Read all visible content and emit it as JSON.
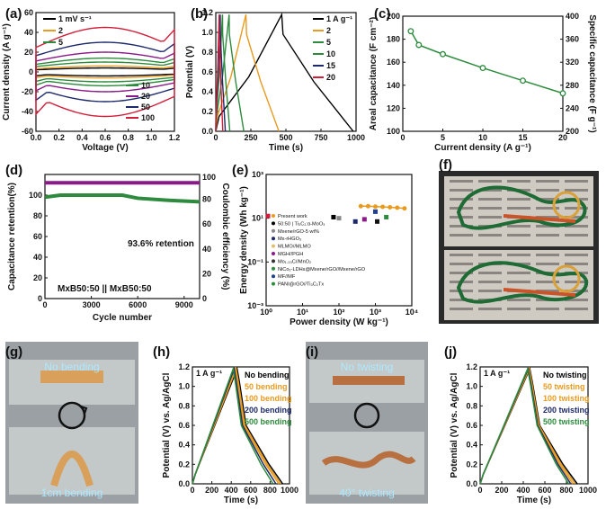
{
  "panel_labels": [
    "(a)",
    "(b)",
    "(c)",
    "(d)",
    "(e)",
    "(f)",
    "(g)",
    "(h)",
    "(i)",
    "(j)"
  ],
  "colors": {
    "black": "#000000",
    "orange": "#e89b1f",
    "green": "#2e8b3e",
    "navy": "#1c2a6b",
    "darkgreen": "#1f6b35",
    "crimson": "#d11f3a",
    "purple": "#8a1a8a",
    "lightgreen": "#4caf50"
  },
  "photos": {
    "g_top": "No bending",
    "g_bottom": "1cm bending",
    "i_top": "No twisting",
    "i_bottom": "40° twisting"
  },
  "chart_data": [
    {
      "id": "a",
      "type": "line",
      "title": "",
      "xlabel": "Voltage (V)",
      "ylabel": "Current density (A g⁻¹)",
      "xlim": [
        0,
        1.2
      ],
      "ylim": [
        -60,
        60
      ],
      "xticks": [
        0.0,
        0.2,
        0.4,
        0.6,
        0.8,
        1.0,
        1.2
      ],
      "yticks": [
        -60,
        -40,
        -20,
        0,
        20,
        40,
        60
      ],
      "series": [
        {
          "name": "1 mV s⁻¹",
          "color": "#000000",
          "amp": 4
        },
        {
          "name": "2",
          "color": "#e89b1f",
          "amp": 6
        },
        {
          "name": "5",
          "color": "#2e8b3e",
          "amp": 10
        },
        {
          "name": "10",
          "color": "#2e8b3e",
          "amp": 14
        },
        {
          "name": "20",
          "color": "#8a1a8a",
          "amp": 20
        },
        {
          "name": "50",
          "color": "#1c2a6b",
          "amp": 30
        },
        {
          "name": "100",
          "color": "#d11f3a",
          "amp": 45
        }
      ]
    },
    {
      "id": "b",
      "type": "line",
      "xlabel": "Time (s)",
      "ylabel": "Potential (V)",
      "xlim": [
        0,
        1000
      ],
      "ylim": [
        0,
        1.2
      ],
      "xticks": [
        0,
        250,
        500,
        750,
        1000
      ],
      "yticks": [
        0.0,
        0.2,
        0.4,
        0.6,
        0.8,
        1.0,
        1.2
      ],
      "series": [
        {
          "name": "1 A g⁻¹",
          "color": "#000000",
          "peak": 470,
          "end": 980
        },
        {
          "name": "2",
          "color": "#e89b1f",
          "peak": 215,
          "end": 450
        },
        {
          "name": "5",
          "color": "#2e8b3e",
          "peak": 95,
          "end": 200
        },
        {
          "name": "10",
          "color": "#2e8b3e",
          "peak": 48,
          "end": 100
        },
        {
          "name": "15",
          "color": "#1c2a6b",
          "peak": 32,
          "end": 68
        },
        {
          "name": "20",
          "color": "#d11f3a",
          "peak": 24,
          "end": 50
        }
      ]
    },
    {
      "id": "c",
      "type": "line",
      "xlabel": "Current density (A g⁻¹)",
      "ylabel": "Areal capacitance (F cm⁻²)",
      "y2label": "Specific capacitance (F g⁻¹)",
      "xlim": [
        0,
        20
      ],
      "ylim": [
        100,
        200
      ],
      "y2lim": [
        200,
        400
      ],
      "xticks": [
        0,
        5,
        10,
        15,
        20
      ],
      "yticks": [
        100,
        120,
        140,
        160,
        180,
        200
      ],
      "y2ticks": [
        200,
        240,
        280,
        320,
        360,
        400
      ],
      "x": [
        1,
        2,
        5,
        10,
        15,
        20
      ],
      "values": [
        187,
        175,
        167,
        155,
        144,
        133
      ],
      "color": "#2e8b3e"
    },
    {
      "id": "d",
      "type": "scatter",
      "xlabel": "Cycle number",
      "ylabel": "Capacitance retention(%)",
      "y2label": "Coulombic efficiency (%)",
      "xlim": [
        0,
        10000
      ],
      "ylim": [
        0,
        120
      ],
      "y2lim": [
        0,
        100
      ],
      "xticks": [
        0,
        3000,
        6000,
        9000
      ],
      "yticks": [
        0,
        20,
        40,
        60,
        80,
        100
      ],
      "y2ticks": [
        0,
        20,
        40,
        60,
        80,
        100
      ],
      "annotation": "93.6% retention",
      "device": "MxB50:50 || MxB50:50",
      "retention": {
        "x": [
          0,
          500,
          1000,
          3000,
          5000,
          6000,
          8000,
          10000
        ],
        "values": [
          98,
          99,
          100,
          100,
          100,
          97,
          95,
          93.6
        ],
        "color": "#2e8b3e"
      },
      "efficiency": {
        "value": 100,
        "color": "#8a1a8a"
      }
    },
    {
      "id": "e",
      "type": "scatter",
      "xlabel": "Power density (W kg⁻¹)",
      "ylabel": "Energy density (Wh kg⁻¹)",
      "xscale": "log",
      "yscale": "log",
      "xlim": [
        0,
        4
      ],
      "ylim": [
        -3,
        3
      ],
      "xticks": [
        "10⁰",
        "10¹",
        "10²",
        "10³",
        "10⁴"
      ],
      "yticks": [
        "10⁻³",
        "10⁻¹",
        "10¹",
        "10³"
      ],
      "legend": [
        {
          "name": "Present work",
          "color": "#e89b1f"
        },
        {
          "name": "50:50 | Ti₃C₂:α-MoO₃",
          "color": "#000000"
        },
        {
          "name": "Mxene/rGO-5 wt%",
          "color": "#888888"
        },
        {
          "name": "Mx-rHGO₃",
          "color": "#1c2a6b"
        },
        {
          "name": "MLMO//MLMO",
          "color": "#e0c070"
        },
        {
          "name": "MGH//PGH",
          "color": "#8a1a8a"
        },
        {
          "name": "Mo₁.₃₃C//MnO₂",
          "color": "#333333"
        },
        {
          "name": "NiCo₂-LDHs@Mxene/rGO//Mxene/rGO",
          "color": "#2e8b3e"
        },
        {
          "name": "MF//MF",
          "color": "#1f3f8f"
        },
        {
          "name": "PANI@rGO//Ti₃C₂Tx",
          "color": "#2e8b3e"
        }
      ],
      "present_work": {
        "x": [
          2.6,
          2.8,
          3.0,
          3.2,
          3.4,
          3.6,
          3.8
        ],
        "y": [
          1.55,
          1.55,
          1.53,
          1.52,
          1.5,
          1.48,
          1.45
        ]
      },
      "others": [
        {
          "x": 0.05,
          "y": 1.1,
          "color": "#d11f3a"
        },
        {
          "x": 1.85,
          "y": 1.05,
          "color": "#000000"
        },
        {
          "x": 2.0,
          "y": 1.0,
          "color": "#888888"
        },
        {
          "x": 2.45,
          "y": 0.85,
          "color": "#1c2a6b"
        },
        {
          "x": 2.7,
          "y": 0.95,
          "color": "#8a1a8a"
        },
        {
          "x": 3.05,
          "y": 0.85,
          "color": "#111111"
        },
        {
          "x": 3.3,
          "y": 1.05,
          "color": "#2e8b3e"
        },
        {
          "x": 3.0,
          "y": 1.3,
          "color": "#1f3f8f"
        }
      ]
    },
    {
      "id": "h",
      "type": "line",
      "xlabel": "Time (s)",
      "ylabel": "Potential (V) vs. Ag/AgCl",
      "xlim": [
        0,
        1000
      ],
      "ylim": [
        0,
        1.2
      ],
      "xticks": [
        0,
        200,
        400,
        600,
        800,
        1000
      ],
      "yticks": [
        0.0,
        0.2,
        0.4,
        0.6,
        0.8,
        1.0,
        1.2
      ],
      "note": "1 A g⁻¹",
      "series": [
        {
          "name": "No bending",
          "color": "#000000",
          "peak": 460,
          "end": 930
        },
        {
          "name": "50 bending",
          "color": "#e89b1f",
          "peak": 450,
          "end": 910
        },
        {
          "name": "100 bending",
          "color": "#e89b1f",
          "peak": 440,
          "end": 890
        },
        {
          "name": "200 bending",
          "color": "#1c2a6b",
          "peak": 430,
          "end": 860
        },
        {
          "name": "500 bending",
          "color": "#2e8b3e",
          "peak": 420,
          "end": 830
        }
      ]
    },
    {
      "id": "j",
      "type": "line",
      "xlabel": "Time (s)",
      "ylabel": "Potential (V) vs. Ag/AgCl",
      "xlim": [
        0,
        1000
      ],
      "ylim": [
        0,
        1.2
      ],
      "xticks": [
        0,
        200,
        400,
        600,
        800,
        1000
      ],
      "yticks": [
        0.0,
        0.2,
        0.4,
        0.6,
        0.8,
        1.0,
        1.2
      ],
      "note": "1 A g⁻¹",
      "series": [
        {
          "name": "No twisting",
          "color": "#000000",
          "peak": 460,
          "end": 900
        },
        {
          "name": "50 twisting",
          "color": "#e89b1f",
          "peak": 455,
          "end": 880
        },
        {
          "name": "100 twisting",
          "color": "#e89b1f",
          "peak": 450,
          "end": 860
        },
        {
          "name": "200 twisting",
          "color": "#1c2a6b",
          "peak": 445,
          "end": 840
        },
        {
          "name": "500 twisting",
          "color": "#2e8b3e",
          "peak": 440,
          "end": 820
        }
      ]
    }
  ]
}
